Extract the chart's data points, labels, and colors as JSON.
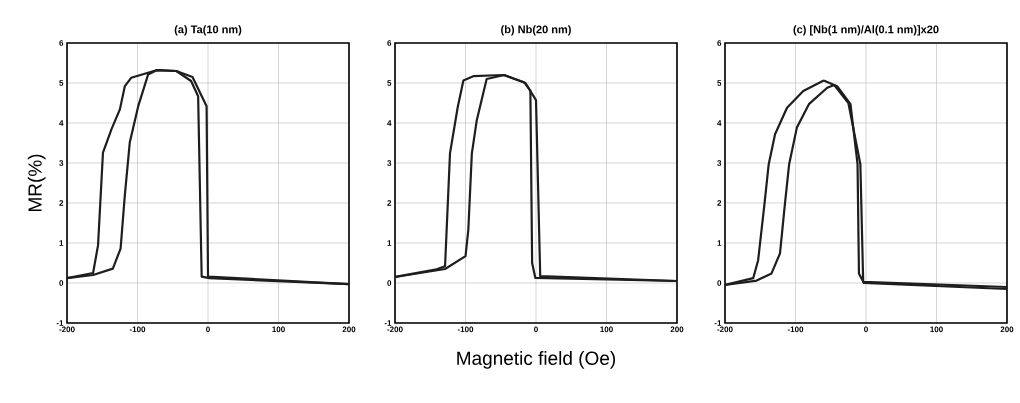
{
  "chart_data": [
    {
      "type": "line",
      "title": "(a) Ta(10 nm)",
      "ylabel": "MR(%)",
      "xlim": [
        -200,
        200
      ],
      "ylim": [
        -1,
        6
      ],
      "xticks": [
        -200,
        -100,
        0,
        100,
        200
      ],
      "yticks": [
        -1,
        0,
        1,
        2,
        3,
        4,
        5,
        6
      ],
      "grid": true,
      "series": [
        {
          "color": "#1e1e1e",
          "x": [
            -200,
            -163,
            -156,
            -149,
            -137,
            -125,
            -118,
            -109,
            -73,
            -45,
            -24,
            -14,
            -9,
            2,
            200
          ],
          "values": [
            0.12,
            0.25,
            0.94,
            3.26,
            3.84,
            4.34,
            4.92,
            5.13,
            5.32,
            5.3,
            5.05,
            4.67,
            0.16,
            0.12,
            -0.03
          ]
        },
        {
          "color": "#1e1e1e",
          "x": [
            -200,
            -163,
            -135,
            -124,
            -118,
            -111,
            -99,
            -85,
            -73,
            -45,
            -22,
            -2,
            0,
            200
          ],
          "values": [
            0.12,
            0.2,
            0.36,
            0.86,
            2.19,
            3.51,
            4.42,
            5.21,
            5.32,
            5.3,
            5.15,
            4.42,
            0.16,
            -0.03
          ]
        }
      ]
    },
    {
      "type": "line",
      "title": "(b) Nb(20 nm)",
      "xlabel": "Magnetic field (Oe)",
      "xlim": [
        -200,
        200
      ],
      "ylim": [
        -1,
        6
      ],
      "xticks": [
        -200,
        -100,
        0,
        100,
        200
      ],
      "yticks": [
        -1,
        0,
        1,
        2,
        3,
        4,
        5,
        6
      ],
      "grid": true,
      "series": [
        {
          "color": "#1e1e1e",
          "x": [
            -200,
            -141,
            -129,
            -122,
            -111,
            -103,
            -89,
            -46,
            -17,
            -8,
            -5.5,
            -1,
            200
          ],
          "values": [
            0.15,
            0.34,
            0.42,
            3.24,
            4.4,
            5.06,
            5.17,
            5.2,
            5.02,
            4.81,
            0.5,
            0.13,
            0.05
          ]
        },
        {
          "color": "#1e1e1e",
          "x": [
            -200,
            -129,
            -100,
            -96,
            -91,
            -84,
            -70,
            -45,
            -15,
            0,
            6,
            200
          ],
          "values": [
            0.15,
            0.35,
            0.67,
            1.33,
            3.24,
            4.07,
            5.1,
            5.2,
            5.0,
            4.57,
            0.17,
            0.05
          ]
        }
      ]
    },
    {
      "type": "line",
      "title": "(c) [Nb(1 nm)/Al(0.1 nm)]x20",
      "xlim": [
        -200,
        200
      ],
      "ylim": [
        -1,
        6
      ],
      "xticks": [
        -200,
        -100,
        0,
        100,
        200
      ],
      "yticks": [
        -1,
        0,
        1,
        2,
        3,
        4,
        5,
        6
      ],
      "grid": true,
      "series": [
        {
          "color": "#1e1e1e",
          "x": [
            -200,
            -160,
            -153,
            -144,
            -138,
            -129,
            -112,
            -89,
            -60,
            -41,
            -22,
            -12,
            -10,
            -3,
            200
          ],
          "values": [
            -0.05,
            0.12,
            0.57,
            1.98,
            2.97,
            3.72,
            4.38,
            4.8,
            5.06,
            4.92,
            4.47,
            2.97,
            0.24,
            0.0,
            -0.15
          ]
        },
        {
          "color": "#1e1e1e",
          "x": [
            -200,
            -155,
            -134,
            -122,
            -115,
            -109,
            -98,
            -81,
            -55,
            -45,
            -25,
            -8,
            -4,
            200
          ],
          "values": [
            -0.05,
            0.06,
            0.24,
            0.74,
            1.98,
            2.97,
            3.89,
            4.47,
            4.88,
            4.95,
            4.5,
            2.97,
            0.03,
            -0.1
          ]
        }
      ]
    }
  ]
}
